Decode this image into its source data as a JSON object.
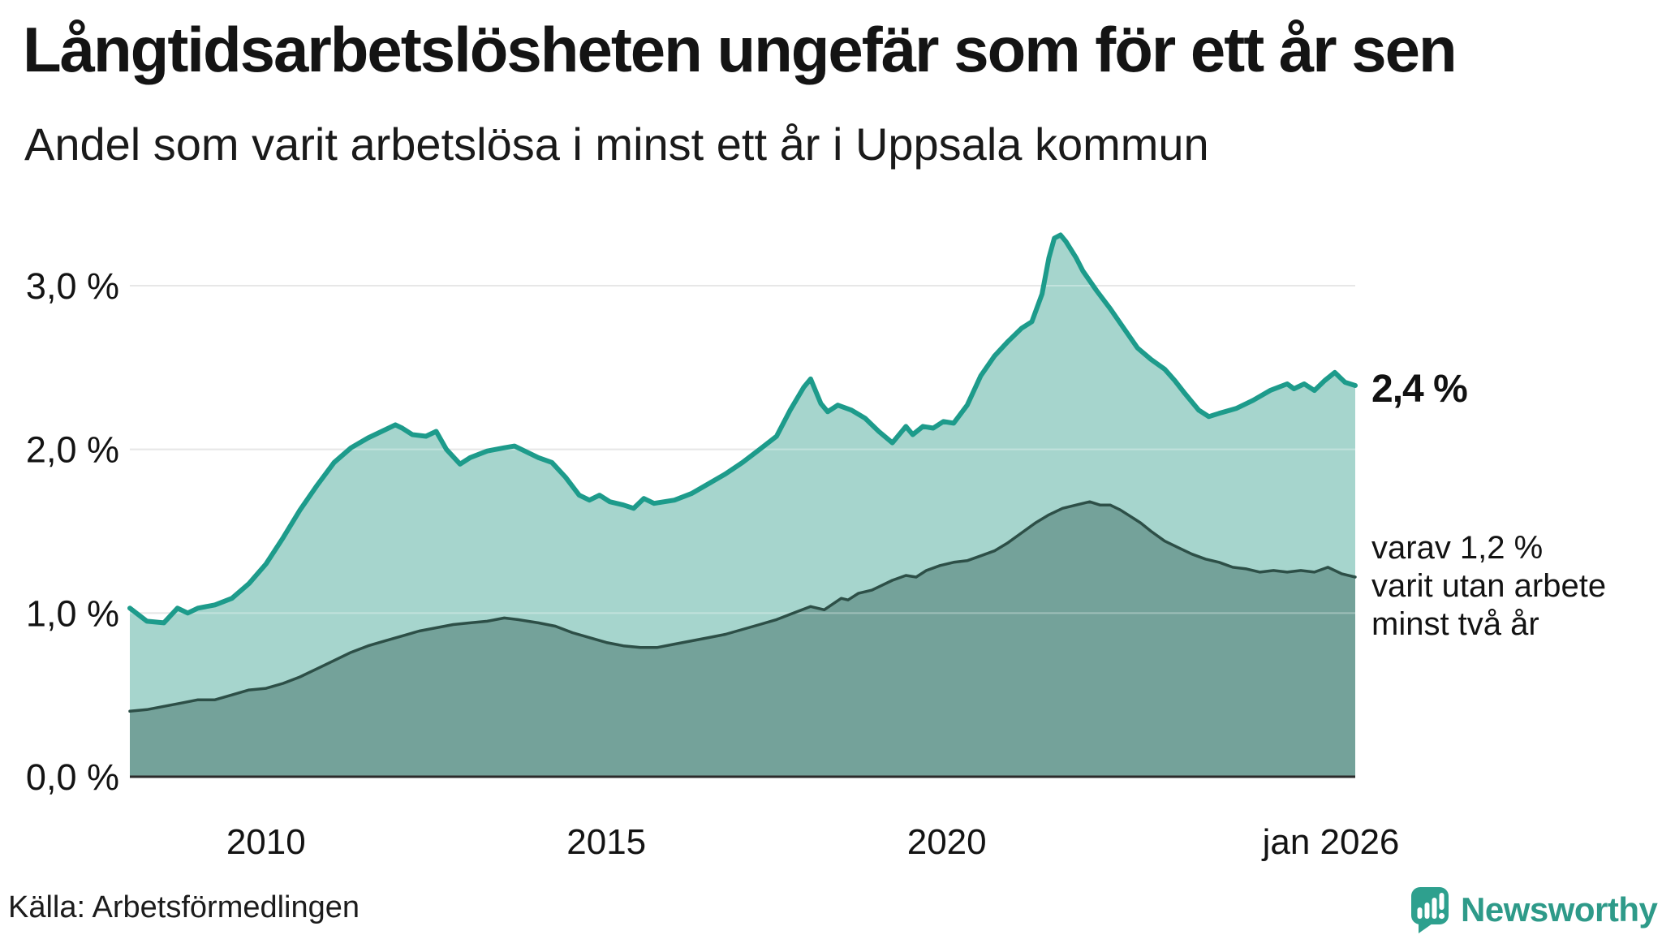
{
  "header": {
    "title": "Långtidsarbetslösheten ungefär som för ett år sen",
    "subtitle": "Andel som varit arbetslösa i minst ett år i Uppsala kommun"
  },
  "annotations": {
    "end_value": "2,4 %",
    "note_lines": [
      "varav 1,2 %",
      "varit utan arbete",
      "minst två år"
    ]
  },
  "source": {
    "label": "Källa: Arbetsförmedlingen"
  },
  "logo": {
    "text": "Newsworthy",
    "color": "#2e9a89",
    "mark_color": "#2ea08e"
  },
  "colors": {
    "total_line": "#1d9b8b",
    "total_fill": "#a6d5cd",
    "two_year_line": "#2d4f47",
    "two_year_fill": "#74a29a",
    "gridline": "#dcdcdc",
    "axis": "#2b2b2b",
    "text": "#131313"
  },
  "chart_data": {
    "type": "area",
    "title": "Långtidsarbetslösheten ungefär som för ett år sen",
    "subtitle": "Andel som varit arbetslösa i minst ett år i Uppsala kommun",
    "ylim": [
      0,
      3.4
    ],
    "x_range": [
      2008,
      2026
    ],
    "grid": true,
    "yticks": [
      {
        "v": 0,
        "label": "0,0 %"
      },
      {
        "v": 1,
        "label": "1,0 %"
      },
      {
        "v": 2,
        "label": "2,0 %"
      },
      {
        "v": 3,
        "label": "3,0 %"
      }
    ],
    "xticks": [
      {
        "v": 2010,
        "label": "2010"
      },
      {
        "v": 2015,
        "label": "2015"
      },
      {
        "v": 2020,
        "label": "2020"
      },
      {
        "v": 2026,
        "label": "jan 2026"
      }
    ],
    "series": [
      {
        "name": "arbetslosa-minst-ett-ar",
        "end_label": "2,4 %",
        "x": [
          2008.0,
          2008.25,
          2008.5,
          2008.7,
          2008.85,
          2009.0,
          2009.25,
          2009.5,
          2009.75,
          2010.0,
          2010.25,
          2010.5,
          2010.75,
          2011.0,
          2011.25,
          2011.5,
          2011.75,
          2011.9,
          2012.0,
          2012.15,
          2012.35,
          2012.5,
          2012.65,
          2012.85,
          2013.0,
          2013.25,
          2013.5,
          2013.65,
          2013.85,
          2014.0,
          2014.2,
          2014.4,
          2014.6,
          2014.75,
          2014.9,
          2015.05,
          2015.25,
          2015.4,
          2015.55,
          2015.7,
          2015.85,
          2016.0,
          2016.25,
          2016.5,
          2016.75,
          2017.0,
          2017.25,
          2017.5,
          2017.7,
          2017.9,
          2018.0,
          2018.15,
          2018.25,
          2018.4,
          2018.6,
          2018.8,
          2019.0,
          2019.2,
          2019.4,
          2019.5,
          2019.65,
          2019.8,
          2019.95,
          2020.1,
          2020.3,
          2020.5,
          2020.7,
          2020.9,
          2021.1,
          2021.25,
          2021.4,
          2021.5,
          2021.58,
          2021.67,
          2021.75,
          2021.9,
          2022.0,
          2022.2,
          2022.4,
          2022.6,
          2022.8,
          2023.0,
          2023.2,
          2023.35,
          2023.5,
          2023.7,
          2023.85,
          2024.0,
          2024.25,
          2024.5,
          2024.75,
          2025.0,
          2025.1,
          2025.25,
          2025.4,
          2025.55,
          2025.7,
          2025.85,
          2026.0
        ],
        "values": [
          1.03,
          0.95,
          0.94,
          1.03,
          1.0,
          1.03,
          1.05,
          1.09,
          1.18,
          1.3,
          1.46,
          1.63,
          1.78,
          1.92,
          2.01,
          2.07,
          2.12,
          2.15,
          2.13,
          2.09,
          2.08,
          2.11,
          2.0,
          1.91,
          1.95,
          1.99,
          2.01,
          2.02,
          1.98,
          1.95,
          1.92,
          1.83,
          1.72,
          1.69,
          1.72,
          1.68,
          1.66,
          1.64,
          1.7,
          1.67,
          1.68,
          1.69,
          1.73,
          1.79,
          1.85,
          1.92,
          2.0,
          2.08,
          2.24,
          2.38,
          2.43,
          2.28,
          2.23,
          2.27,
          2.24,
          2.19,
          2.11,
          2.04,
          2.14,
          2.09,
          2.14,
          2.13,
          2.17,
          2.16,
          2.27,
          2.45,
          2.57,
          2.66,
          2.74,
          2.78,
          2.95,
          3.17,
          3.29,
          3.31,
          3.27,
          3.17,
          3.09,
          2.97,
          2.86,
          2.74,
          2.62,
          2.55,
          2.49,
          2.42,
          2.34,
          2.24,
          2.2,
          2.22,
          2.25,
          2.3,
          2.36,
          2.4,
          2.37,
          2.4,
          2.36,
          2.42,
          2.47,
          2.41,
          2.39
        ]
      },
      {
        "name": "varav-minst-tva-ar",
        "end_label": "varav 1,2 % varit utan arbete minst två år",
        "x": [
          2008.0,
          2008.25,
          2008.5,
          2008.75,
          2009.0,
          2009.25,
          2009.5,
          2009.75,
          2010.0,
          2010.25,
          2010.5,
          2010.75,
          2011.0,
          2011.25,
          2011.5,
          2011.75,
          2012.0,
          2012.25,
          2012.5,
          2012.75,
          2013.0,
          2013.25,
          2013.5,
          2013.7,
          2014.0,
          2014.25,
          2014.5,
          2014.75,
          2015.0,
          2015.25,
          2015.5,
          2015.75,
          2016.0,
          2016.25,
          2016.5,
          2016.75,
          2017.0,
          2017.25,
          2017.5,
          2017.75,
          2018.0,
          2018.2,
          2018.45,
          2018.55,
          2018.7,
          2018.9,
          2019.0,
          2019.2,
          2019.4,
          2019.55,
          2019.7,
          2019.9,
          2020.1,
          2020.3,
          2020.5,
          2020.7,
          2020.9,
          2021.1,
          2021.3,
          2021.5,
          2021.7,
          2021.9,
          2022.1,
          2022.25,
          2022.4,
          2022.55,
          2022.7,
          2022.85,
          2023.0,
          2023.2,
          2023.4,
          2023.6,
          2023.8,
          2024.0,
          2024.2,
          2024.4,
          2024.6,
          2024.8,
          2025.0,
          2025.2,
          2025.4,
          2025.6,
          2025.8,
          2026.0
        ],
        "values": [
          0.4,
          0.41,
          0.43,
          0.45,
          0.47,
          0.47,
          0.5,
          0.53,
          0.54,
          0.57,
          0.61,
          0.66,
          0.71,
          0.76,
          0.8,
          0.83,
          0.86,
          0.89,
          0.91,
          0.93,
          0.94,
          0.95,
          0.97,
          0.96,
          0.94,
          0.92,
          0.88,
          0.85,
          0.82,
          0.8,
          0.79,
          0.79,
          0.81,
          0.83,
          0.85,
          0.87,
          0.9,
          0.93,
          0.96,
          1.0,
          1.04,
          1.02,
          1.09,
          1.08,
          1.12,
          1.14,
          1.16,
          1.2,
          1.23,
          1.22,
          1.26,
          1.29,
          1.31,
          1.32,
          1.35,
          1.38,
          1.43,
          1.49,
          1.55,
          1.6,
          1.64,
          1.66,
          1.68,
          1.66,
          1.66,
          1.63,
          1.59,
          1.55,
          1.5,
          1.44,
          1.4,
          1.36,
          1.33,
          1.31,
          1.28,
          1.27,
          1.25,
          1.26,
          1.25,
          1.26,
          1.25,
          1.28,
          1.24,
          1.22
        ]
      }
    ]
  }
}
